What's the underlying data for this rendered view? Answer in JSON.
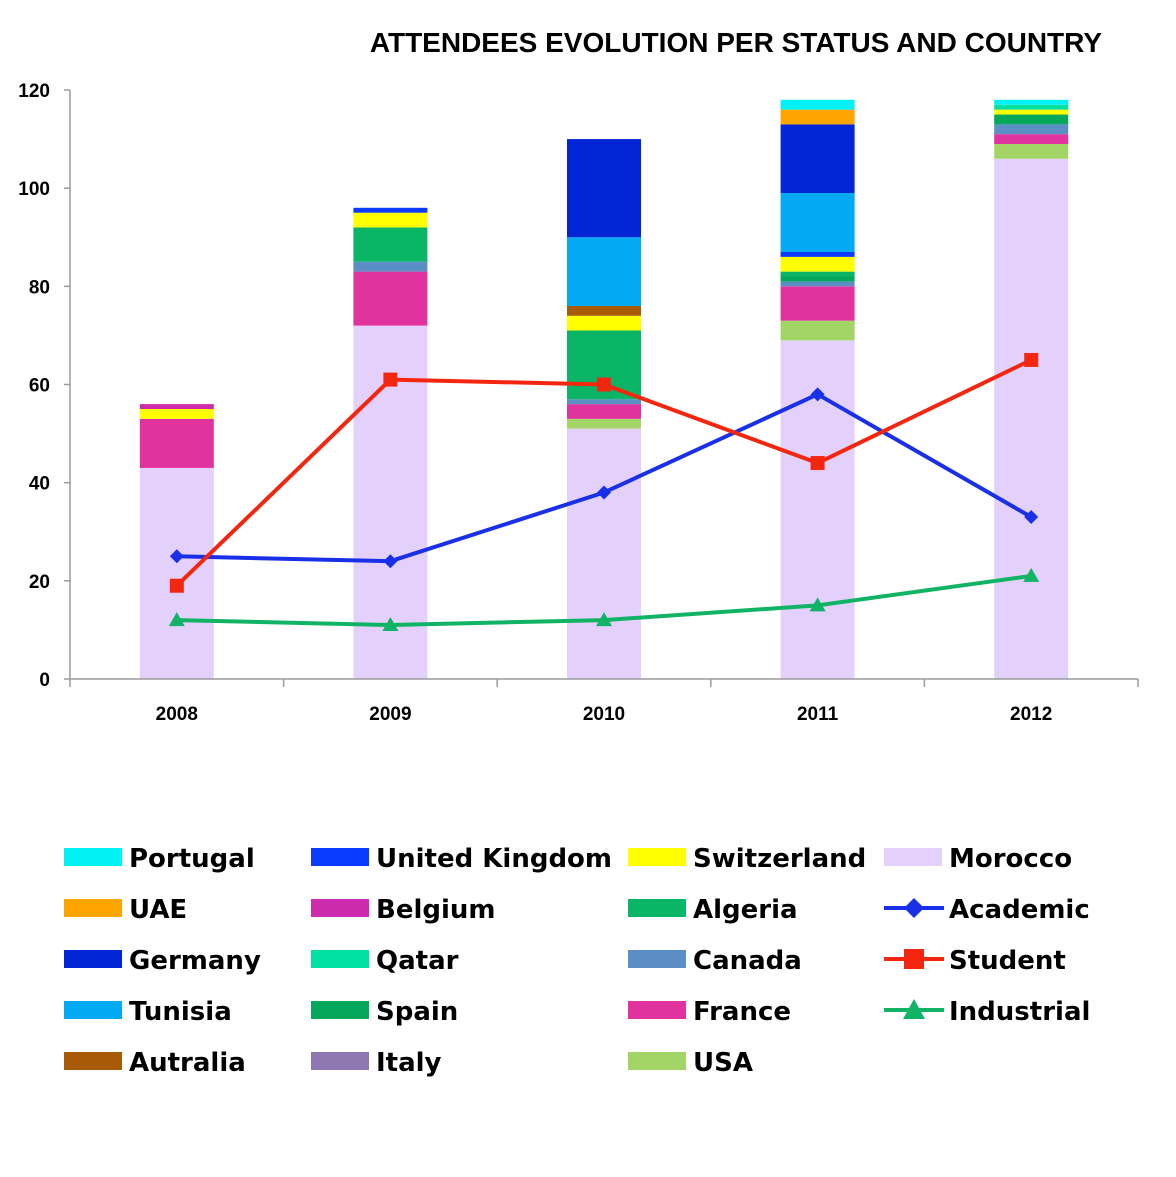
{
  "chart_data": {
    "type": "bar",
    "stacked": true,
    "title": "ATTENDEES EVOLUTION PER STATUS AND COUNTRY",
    "categories": [
      "2008",
      "2009",
      "2010",
      "2011",
      "2012"
    ],
    "ylim": [
      0,
      120
    ],
    "yticks": [
      0,
      20,
      40,
      60,
      80,
      100,
      120
    ],
    "xlabel": "",
    "ylabel": "",
    "bar_series": [
      {
        "name": "Morocco",
        "color": "#E3D1FC",
        "values": [
          43,
          72,
          51,
          69,
          106
        ]
      },
      {
        "name": "USA",
        "color": "#A2D566",
        "values": [
          0,
          0,
          2,
          4,
          3
        ]
      },
      {
        "name": "France",
        "color": "#E1339E",
        "values": [
          10,
          11,
          3,
          7,
          2
        ]
      },
      {
        "name": "Italy",
        "color": "#8D78B1",
        "values": [
          0,
          0,
          0,
          0,
          0
        ]
      },
      {
        "name": "Canada",
        "color": "#5B8EC4",
        "values": [
          0,
          2,
          1,
          1,
          2
        ]
      },
      {
        "name": "Spain",
        "color": "#05A85A",
        "values": [
          0,
          0,
          0,
          1,
          2
        ]
      },
      {
        "name": "Algeria",
        "color": "#0BB566",
        "values": [
          0,
          7,
          14,
          1,
          0
        ]
      },
      {
        "name": "Switzerland",
        "color": "#FFFF00",
        "values": [
          2,
          3,
          3,
          3,
          1
        ]
      },
      {
        "name": "Autralia",
        "color": "#A85B06",
        "values": [
          0,
          0,
          2,
          0,
          0
        ]
      },
      {
        "name": "Belgium",
        "color": "#CC2BAE",
        "values": [
          1,
          0,
          0,
          0,
          0
        ]
      },
      {
        "name": "United Kingdom",
        "color": "#0A3BFF",
        "values": [
          0,
          1,
          0,
          1,
          0
        ]
      },
      {
        "name": "Tunisia",
        "color": "#04A9F4",
        "values": [
          0,
          0,
          14,
          12,
          0
        ]
      },
      {
        "name": "Germany",
        "color": "#0225D6",
        "values": [
          0,
          0,
          20,
          14,
          0
        ]
      },
      {
        "name": "UAE",
        "color": "#FFA500",
        "values": [
          0,
          0,
          0,
          3,
          0
        ]
      },
      {
        "name": "Qatar",
        "color": "#00E0A0",
        "values": [
          0,
          0,
          0,
          0,
          1
        ]
      },
      {
        "name": "Portugal",
        "color": "#00F2F5",
        "values": [
          0,
          0,
          0,
          2,
          1
        ]
      }
    ],
    "line_series": [
      {
        "name": "Academic",
        "color": "#1930E8",
        "marker": "diamond",
        "values": [
          25,
          24,
          38,
          58,
          33
        ]
      },
      {
        "name": "Student",
        "color": "#F5260F",
        "marker": "square",
        "values": [
          19,
          61,
          60,
          44,
          65
        ]
      },
      {
        "name": "Industrial",
        "color": "#11B364",
        "marker": "triangle",
        "values": [
          12,
          11,
          12,
          15,
          21
        ]
      }
    ],
    "legend": {
      "placement": "bottom",
      "columns": [
        [
          "Portugal",
          "UAE",
          "Germany",
          "Tunisia",
          "Autralia"
        ],
        [
          "United Kingdom",
          "Belgium",
          "Qatar",
          "Spain",
          "Italy"
        ],
        [
          "Switzerland",
          "Algeria",
          "Canada",
          "France",
          "USA"
        ],
        [
          "Morocco",
          "Academic",
          "Student",
          "Industrial"
        ]
      ]
    }
  }
}
